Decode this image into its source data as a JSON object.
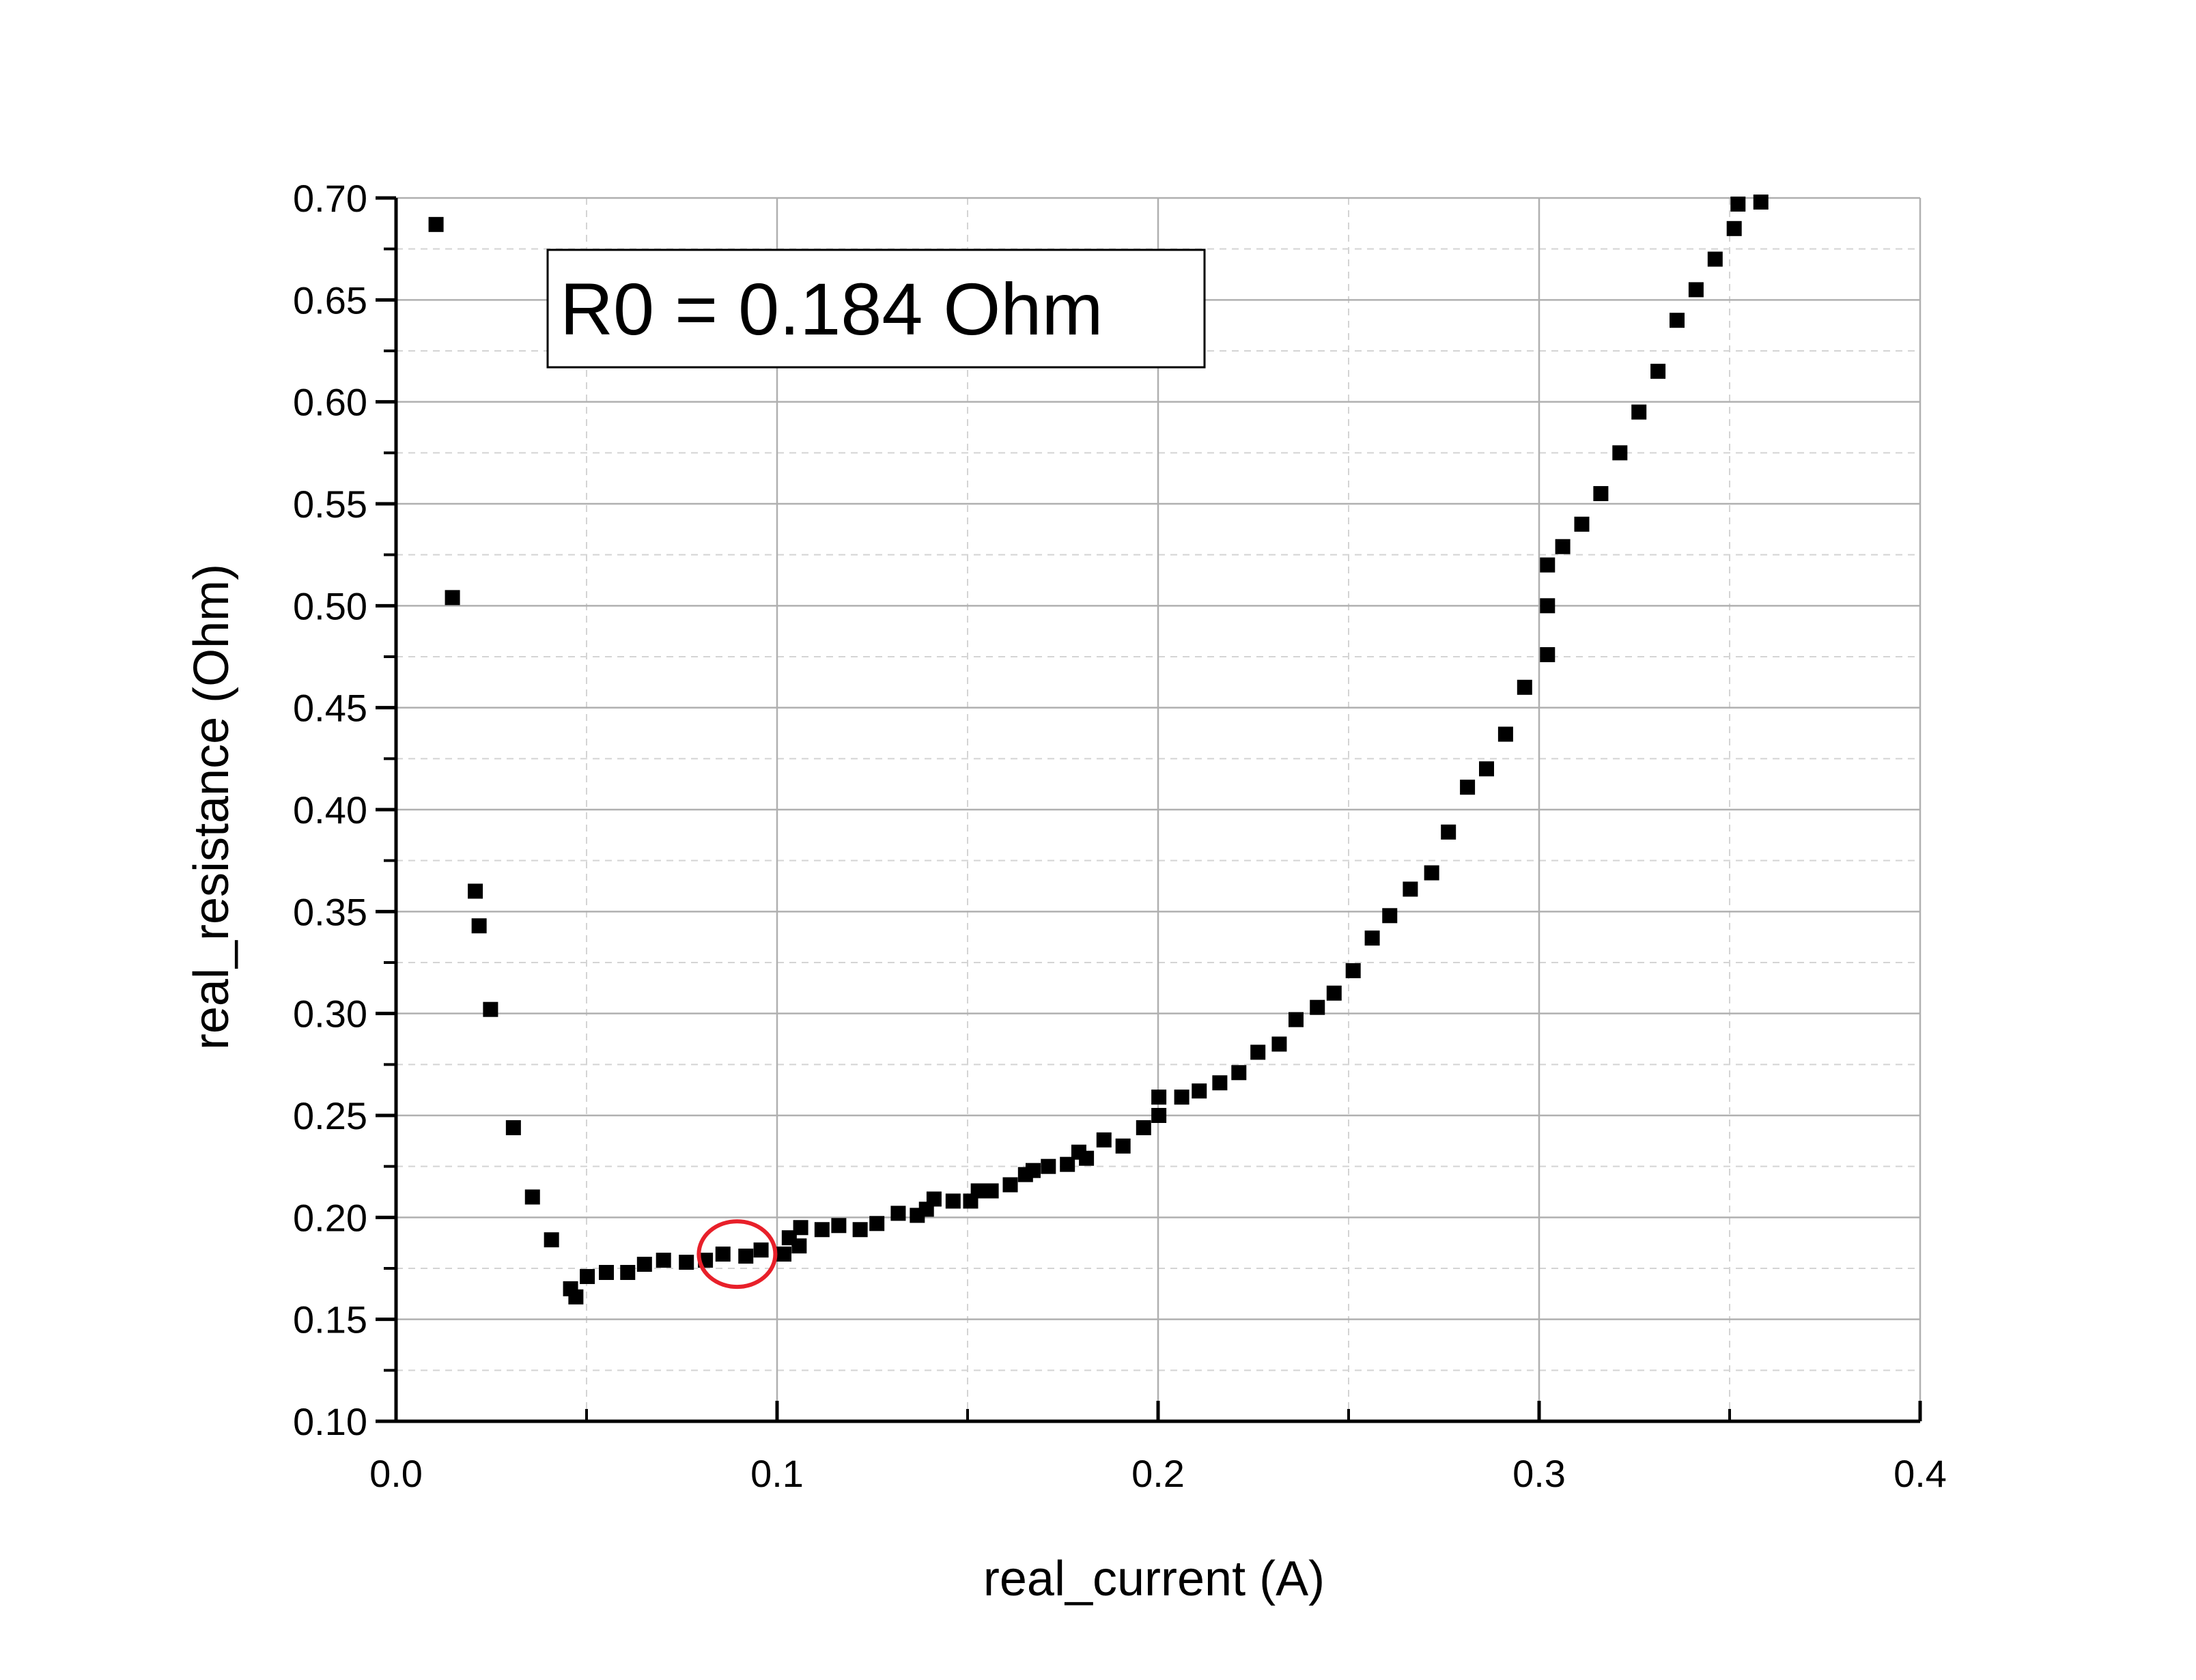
{
  "chart_data": {
    "type": "scatter",
    "title": "",
    "xlabel": "real_current (A)",
    "ylabel": "real_resistance (Ohm)",
    "xlim": [
      0.0,
      0.4
    ],
    "ylim": [
      0.1,
      0.7
    ],
    "x_ticks": [
      0.0,
      0.1,
      0.2,
      0.3,
      0.4
    ],
    "x_tick_labels": [
      "0.0",
      "0.1",
      "0.2",
      "0.3",
      "0.4"
    ],
    "y_ticks": [
      0.1,
      0.15,
      0.2,
      0.25,
      0.3,
      0.35,
      0.4,
      0.45,
      0.5,
      0.55,
      0.6,
      0.65,
      0.7
    ],
    "y_tick_labels": [
      "0.10",
      "0.15",
      "0.20",
      "0.25",
      "0.30",
      "0.35",
      "0.40",
      "0.45",
      "0.50",
      "0.55",
      "0.60",
      "0.65",
      "0.70"
    ],
    "grid": true,
    "marker": "square",
    "colors": {
      "marker": "#000000",
      "grid_major": "#b0b0b0",
      "grid_minor": "#d4d4d4",
      "highlight": "#e8202a"
    },
    "annotation": {
      "text": "R0 = 0.184 Ohm"
    },
    "highlight": {
      "shape": "ellipse",
      "x": 0.0895,
      "y": 0.182
    },
    "series": [
      {
        "marker": "square",
        "points": [
          [
            0.0105,
            0.687
          ],
          [
            0.0148,
            0.504
          ],
          [
            0.0208,
            0.36
          ],
          [
            0.0218,
            0.343
          ],
          [
            0.0248,
            0.302
          ],
          [
            0.0308,
            0.244
          ],
          [
            0.0358,
            0.21
          ],
          [
            0.0408,
            0.189
          ],
          [
            0.0458,
            0.165
          ],
          [
            0.0472,
            0.161
          ],
          [
            0.0502,
            0.171
          ],
          [
            0.0552,
            0.173
          ],
          [
            0.0608,
            0.173
          ],
          [
            0.0652,
            0.177
          ],
          [
            0.0702,
            0.179
          ],
          [
            0.0762,
            0.178
          ],
          [
            0.0812,
            0.179
          ],
          [
            0.0858,
            0.182
          ],
          [
            0.0918,
            0.181
          ],
          [
            0.0958,
            0.184
          ],
          [
            0.1018,
            0.182
          ],
          [
            0.1032,
            0.19
          ],
          [
            0.1058,
            0.186
          ],
          [
            0.1062,
            0.195
          ],
          [
            0.1118,
            0.194
          ],
          [
            0.1162,
            0.196
          ],
          [
            0.1218,
            0.194
          ],
          [
            0.1262,
            0.197
          ],
          [
            0.1318,
            0.202
          ],
          [
            0.1368,
            0.201
          ],
          [
            0.1392,
            0.204
          ],
          [
            0.1412,
            0.209
          ],
          [
            0.1462,
            0.208
          ],
          [
            0.1508,
            0.208
          ],
          [
            0.1528,
            0.213
          ],
          [
            0.1562,
            0.213
          ],
          [
            0.1612,
            0.216
          ],
          [
            0.1652,
            0.221
          ],
          [
            0.1672,
            0.223
          ],
          [
            0.1712,
            0.225
          ],
          [
            0.1762,
            0.226
          ],
          [
            0.1792,
            0.232
          ],
          [
            0.1812,
            0.229
          ],
          [
            0.1858,
            0.238
          ],
          [
            0.1908,
            0.235
          ],
          [
            0.1962,
            0.244
          ],
          [
            0.2002,
            0.25
          ],
          [
            0.2002,
            0.259
          ],
          [
            0.2062,
            0.259
          ],
          [
            0.2108,
            0.262
          ],
          [
            0.2162,
            0.266
          ],
          [
            0.2212,
            0.271
          ],
          [
            0.2262,
            0.281
          ],
          [
            0.2318,
            0.285
          ],
          [
            0.2362,
            0.297
          ],
          [
            0.2418,
            0.303
          ],
          [
            0.2462,
            0.31
          ],
          [
            0.2512,
            0.321
          ],
          [
            0.2562,
            0.337
          ],
          [
            0.2608,
            0.348
          ],
          [
            0.2662,
            0.361
          ],
          [
            0.2718,
            0.369
          ],
          [
            0.2762,
            0.389
          ],
          [
            0.2812,
            0.411
          ],
          [
            0.2862,
            0.42
          ],
          [
            0.2912,
            0.437
          ],
          [
            0.2962,
            0.46
          ],
          [
            0.3022,
            0.476
          ],
          [
            0.3022,
            0.5
          ],
          [
            0.3022,
            0.52
          ],
          [
            0.3062,
            0.529
          ],
          [
            0.3112,
            0.54
          ],
          [
            0.3162,
            0.555
          ],
          [
            0.3212,
            0.575
          ],
          [
            0.3262,
            0.595
          ],
          [
            0.3312,
            0.615
          ],
          [
            0.3362,
            0.64
          ],
          [
            0.3412,
            0.655
          ],
          [
            0.3462,
            0.67
          ],
          [
            0.3512,
            0.685
          ],
          [
            0.3522,
            0.697
          ],
          [
            0.3582,
            0.698
          ]
        ]
      }
    ]
  }
}
